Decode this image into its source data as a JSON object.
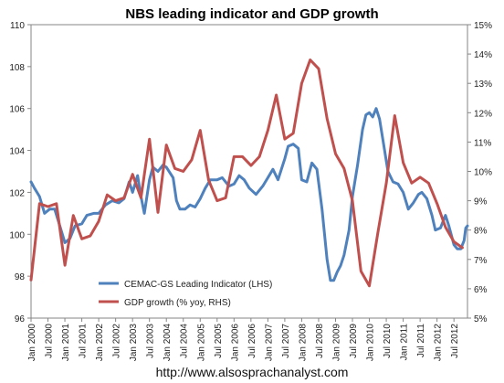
{
  "chart_data": {
    "type": "line",
    "title": "NBS leading indicator and GDP growth",
    "source_text": "http://www.alsosprachanalyst.com",
    "left_axis": {
      "min": 96,
      "max": 110,
      "ticks": [
        "96",
        "98",
        "100",
        "102",
        "104",
        "106",
        "108",
        "110"
      ]
    },
    "right_axis": {
      "min": 5,
      "max": 15,
      "ticks": [
        "5%",
        "6%",
        "7%",
        "8%",
        "9%",
        "10%",
        "11%",
        "12%",
        "13%",
        "14%",
        "15%"
      ]
    },
    "x_range": [
      2000.0,
      2012.9
    ],
    "x_ticks": [
      {
        "t": 2000.0,
        "label": "Jan 2000"
      },
      {
        "t": 2000.5,
        "label": "Jul 2000"
      },
      {
        "t": 2001.0,
        "label": "Jan 2001"
      },
      {
        "t": 2001.5,
        "label": "Jul 2001"
      },
      {
        "t": 2002.0,
        "label": "Jan 2002"
      },
      {
        "t": 2002.5,
        "label": "Jul 2002"
      },
      {
        "t": 2003.0,
        "label": "Jan 2003"
      },
      {
        "t": 2003.5,
        "label": "Jul 2003"
      },
      {
        "t": 2004.0,
        "label": "Jan 2004"
      },
      {
        "t": 2004.5,
        "label": "Jul 2004"
      },
      {
        "t": 2005.0,
        "label": "Jan 2005"
      },
      {
        "t": 2005.5,
        "label": "Jul 2005"
      },
      {
        "t": 2006.0,
        "label": "Jan 2006"
      },
      {
        "t": 2006.5,
        "label": "Jul 2006"
      },
      {
        "t": 2007.0,
        "label": "Jan 2007"
      },
      {
        "t": 2007.5,
        "label": "Jul 2007"
      },
      {
        "t": 2008.0,
        "label": "Jan 2008"
      },
      {
        "t": 2008.5,
        "label": "Jul 2008"
      },
      {
        "t": 2009.0,
        "label": "Jan 2009"
      },
      {
        "t": 2009.5,
        "label": "Jul 2009"
      },
      {
        "t": 2010.0,
        "label": "Jan 2010"
      },
      {
        "t": 2010.5,
        "label": "Jul 2010"
      },
      {
        "t": 2011.0,
        "label": "Jan 2011"
      },
      {
        "t": 2011.5,
        "label": "Jul 2011"
      },
      {
        "t": 2012.0,
        "label": "Jan 2012"
      },
      {
        "t": 2012.5,
        "label": "Jul 2012"
      }
    ],
    "legend_placement": "bottom-left inside plot",
    "grid": false,
    "series": [
      {
        "name": "CEMAC-GS Leading Indicator (LHS)",
        "axis": "left",
        "color": "#4f81bd",
        "points": [
          [
            2000.0,
            102.5
          ],
          [
            2000.1,
            102.2
          ],
          [
            2000.25,
            101.8
          ],
          [
            2000.4,
            101.0
          ],
          [
            2000.55,
            101.2
          ],
          [
            2000.7,
            101.2
          ],
          [
            2000.85,
            100.4
          ],
          [
            2001.0,
            99.6
          ],
          [
            2001.15,
            99.8
          ],
          [
            2001.3,
            100.4
          ],
          [
            2001.5,
            100.5
          ],
          [
            2001.65,
            100.9
          ],
          [
            2001.85,
            101.0
          ],
          [
            2002.0,
            101.0
          ],
          [
            2002.2,
            101.4
          ],
          [
            2002.4,
            101.6
          ],
          [
            2002.6,
            101.5
          ],
          [
            2002.75,
            101.7
          ],
          [
            2002.9,
            102.5
          ],
          [
            2003.0,
            102.0
          ],
          [
            2003.15,
            102.8
          ],
          [
            2003.25,
            101.8
          ],
          [
            2003.35,
            101.0
          ],
          [
            2003.5,
            102.6
          ],
          [
            2003.6,
            103.2
          ],
          [
            2003.75,
            103.0
          ],
          [
            2003.9,
            103.3
          ],
          [
            2004.0,
            103.2
          ],
          [
            2004.2,
            102.7
          ],
          [
            2004.3,
            101.6
          ],
          [
            2004.4,
            101.2
          ],
          [
            2004.55,
            101.2
          ],
          [
            2004.7,
            101.4
          ],
          [
            2004.85,
            101.3
          ],
          [
            2005.0,
            101.7
          ],
          [
            2005.15,
            102.2
          ],
          [
            2005.3,
            102.6
          ],
          [
            2005.5,
            102.6
          ],
          [
            2005.65,
            102.7
          ],
          [
            2005.85,
            102.3
          ],
          [
            2006.0,
            102.4
          ],
          [
            2006.15,
            102.8
          ],
          [
            2006.3,
            102.6
          ],
          [
            2006.45,
            102.2
          ],
          [
            2006.65,
            101.9
          ],
          [
            2006.85,
            102.3
          ],
          [
            2007.0,
            102.7
          ],
          [
            2007.15,
            103.1
          ],
          [
            2007.3,
            102.6
          ],
          [
            2007.5,
            103.6
          ],
          [
            2007.6,
            104.2
          ],
          [
            2007.75,
            104.3
          ],
          [
            2007.9,
            104.1
          ],
          [
            2008.0,
            102.6
          ],
          [
            2008.15,
            102.5
          ],
          [
            2008.3,
            103.4
          ],
          [
            2008.45,
            103.1
          ],
          [
            2008.6,
            101.2
          ],
          [
            2008.75,
            98.8
          ],
          [
            2008.85,
            97.8
          ],
          [
            2008.95,
            97.8
          ],
          [
            2009.05,
            98.2
          ],
          [
            2009.15,
            98.5
          ],
          [
            2009.25,
            99.0
          ],
          [
            2009.4,
            100.2
          ],
          [
            2009.5,
            101.8
          ],
          [
            2009.65,
            103.3
          ],
          [
            2009.8,
            105.0
          ],
          [
            2009.9,
            105.7
          ],
          [
            2010.0,
            105.8
          ],
          [
            2010.1,
            105.6
          ],
          [
            2010.2,
            106.0
          ],
          [
            2010.3,
            105.5
          ],
          [
            2010.4,
            104.5
          ],
          [
            2010.55,
            103.0
          ],
          [
            2010.7,
            102.5
          ],
          [
            2010.85,
            102.4
          ],
          [
            2011.0,
            102.0
          ],
          [
            2011.15,
            101.2
          ],
          [
            2011.3,
            101.5
          ],
          [
            2011.45,
            101.9
          ],
          [
            2011.55,
            102.0
          ],
          [
            2011.7,
            101.7
          ],
          [
            2011.85,
            100.9
          ],
          [
            2011.95,
            100.2
          ],
          [
            2012.1,
            100.3
          ],
          [
            2012.25,
            100.9
          ],
          [
            2012.35,
            100.4
          ],
          [
            2012.5,
            99.5
          ],
          [
            2012.6,
            99.3
          ],
          [
            2012.7,
            99.3
          ],
          [
            2012.8,
            99.7
          ],
          [
            2012.85,
            100.3
          ],
          [
            2012.9,
            100.4
          ]
        ]
      },
      {
        "name": "GDP growth (% yoy, RHS)",
        "axis": "right",
        "color": "#c0504d",
        "points": [
          [
            2000.0,
            6.3
          ],
          [
            2000.25,
            8.9
          ],
          [
            2000.5,
            8.8
          ],
          [
            2000.75,
            8.9
          ],
          [
            2001.0,
            6.8
          ],
          [
            2001.25,
            8.5
          ],
          [
            2001.5,
            7.7
          ],
          [
            2001.75,
            7.8
          ],
          [
            2002.0,
            8.3
          ],
          [
            2002.25,
            9.2
          ],
          [
            2002.5,
            9.0
          ],
          [
            2002.75,
            9.1
          ],
          [
            2003.0,
            9.9
          ],
          [
            2003.25,
            9.1
          ],
          [
            2003.5,
            11.1
          ],
          [
            2003.75,
            8.6
          ],
          [
            2004.0,
            10.9
          ],
          [
            2004.25,
            10.1
          ],
          [
            2004.5,
            10.0
          ],
          [
            2004.75,
            10.4
          ],
          [
            2005.0,
            11.4
          ],
          [
            2005.25,
            9.7
          ],
          [
            2005.5,
            9.0
          ],
          [
            2005.75,
            9.1
          ],
          [
            2006.0,
            10.5
          ],
          [
            2006.25,
            10.5
          ],
          [
            2006.5,
            10.2
          ],
          [
            2006.75,
            10.5
          ],
          [
            2007.0,
            11.4
          ],
          [
            2007.25,
            12.6
          ],
          [
            2007.5,
            11.1
          ],
          [
            2007.75,
            11.3
          ],
          [
            2008.0,
            13.0
          ],
          [
            2008.25,
            13.8
          ],
          [
            2008.5,
            13.5
          ],
          [
            2008.75,
            11.8
          ],
          [
            2009.0,
            10.6
          ],
          [
            2009.25,
            10.1
          ],
          [
            2009.5,
            9.0
          ],
          [
            2009.75,
            6.6
          ],
          [
            2010.0,
            6.1
          ],
          [
            2010.25,
            7.9
          ],
          [
            2010.5,
            9.6
          ],
          [
            2010.75,
            11.9
          ],
          [
            2011.0,
            10.3
          ],
          [
            2011.25,
            9.6
          ],
          [
            2011.5,
            9.8
          ],
          [
            2011.75,
            9.6
          ],
          [
            2012.0,
            8.9
          ],
          [
            2012.25,
            8.1
          ],
          [
            2012.5,
            7.6
          ],
          [
            2012.75,
            7.4
          ]
        ]
      }
    ]
  }
}
